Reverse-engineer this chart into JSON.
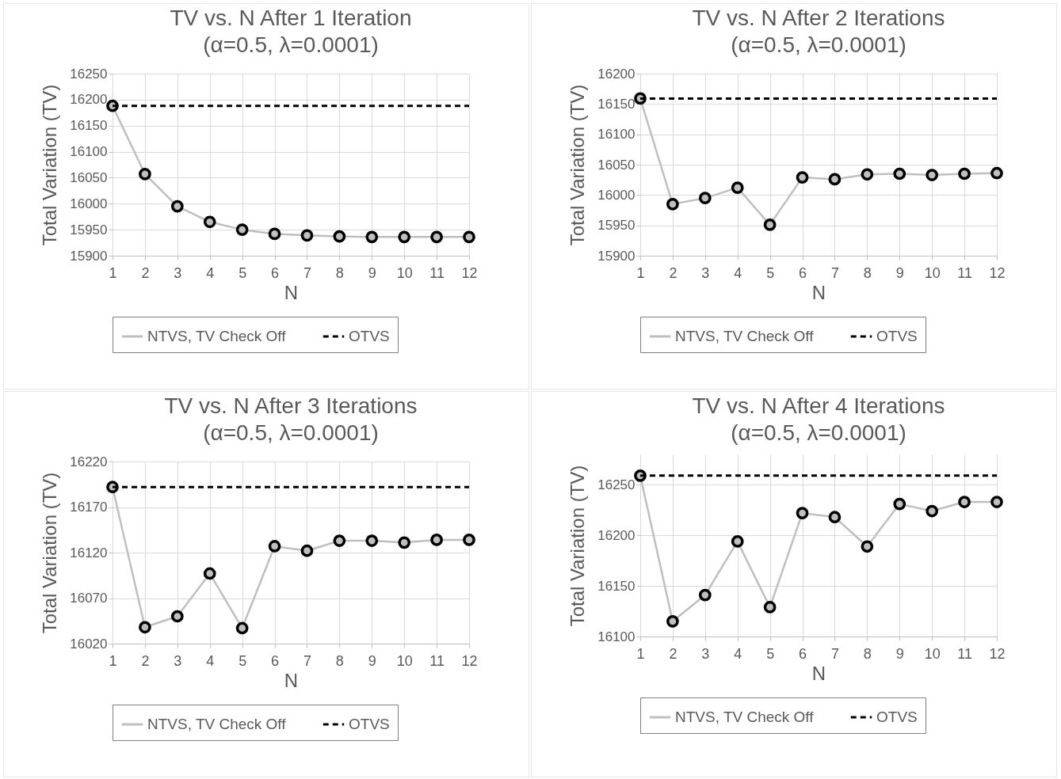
{
  "chart_data": [
    {
      "type": "line",
      "title": "TV vs. N After 1 Iteration",
      "subtitle": "(α=0.5, λ=0.0001)",
      "xlabel": "N",
      "ylabel": "Total Variation (TV)",
      "x": [
        1,
        2,
        3,
        4,
        5,
        6,
        7,
        8,
        9,
        10,
        11,
        12
      ],
      "xlim": [
        1,
        12
      ],
      "xticks": [
        1,
        2,
        3,
        4,
        5,
        6,
        7,
        8,
        9,
        10,
        11,
        12
      ],
      "ylim": [
        15900,
        16250
      ],
      "yticks": [
        15900,
        15950,
        16000,
        16050,
        16100,
        16150,
        16200,
        16250
      ],
      "grid": true,
      "legend": "bottom",
      "series": [
        {
          "name": "NTVS, TV Check Off",
          "color": "#bfbfbf",
          "marker": "circle",
          "line_style": "solid",
          "values": [
            16188,
            16057,
            15995,
            15965,
            15950,
            15942,
            15939,
            15937,
            15936,
            15936,
            15936,
            15936
          ]
        },
        {
          "name": "OTVS",
          "color": "#000000",
          "marker": "none",
          "line_style": "dashed",
          "values": [
            16188,
            16188,
            16188,
            16188,
            16188,
            16188,
            16188,
            16188,
            16188,
            16188,
            16188,
            16188
          ]
        }
      ]
    },
    {
      "type": "line",
      "title": "TV vs. N After 2 Iterations",
      "subtitle": "(α=0.5, λ=0.0001)",
      "xlabel": "N",
      "ylabel": "Total Variation (TV)",
      "x": [
        1,
        2,
        3,
        4,
        5,
        6,
        7,
        8,
        9,
        10,
        11,
        12
      ],
      "xlim": [
        1,
        12
      ],
      "xticks": [
        1,
        2,
        3,
        4,
        5,
        6,
        7,
        8,
        9,
        10,
        11,
        12
      ],
      "ylim": [
        15900,
        16200
      ],
      "yticks": [
        15900,
        15950,
        16000,
        16050,
        16100,
        16150,
        16200
      ],
      "grid": true,
      "legend": "bottom",
      "series": [
        {
          "name": "NTVS, TV Check Off",
          "color": "#bfbfbf",
          "marker": "circle",
          "line_style": "solid",
          "values": [
            16159,
            15985,
            15995,
            16012,
            15951,
            16029,
            16026,
            16034,
            16035,
            16033,
            16035,
            16036
          ]
        },
        {
          "name": "OTVS",
          "color": "#000000",
          "marker": "none",
          "line_style": "dashed",
          "values": [
            16159,
            16159,
            16159,
            16159,
            16159,
            16159,
            16159,
            16159,
            16159,
            16159,
            16159,
            16159
          ]
        }
      ]
    },
    {
      "type": "line",
      "title": "TV vs. N After 3 Iterations",
      "subtitle": "(α=0.5, λ=0.0001)",
      "xlabel": "N",
      "ylabel": "Total Variation (TV)",
      "x": [
        1,
        2,
        3,
        4,
        5,
        6,
        7,
        8,
        9,
        10,
        11,
        12
      ],
      "xlim": [
        1,
        12
      ],
      "xticks": [
        1,
        2,
        3,
        4,
        5,
        6,
        7,
        8,
        9,
        10,
        11,
        12
      ],
      "ylim": [
        16020,
        16220
      ],
      "yticks": [
        16020,
        16070,
        16120,
        16170,
        16220
      ],
      "grid": true,
      "legend": "bottom",
      "series": [
        {
          "name": "NTVS, TV Check Off",
          "color": "#bfbfbf",
          "marker": "circle",
          "line_style": "solid",
          "values": [
            16192,
            16038,
            16050,
            16097,
            16037,
            16127,
            16122,
            16133,
            16133,
            16131,
            16134,
            16134
          ]
        },
        {
          "name": "OTVS",
          "color": "#000000",
          "marker": "none",
          "line_style": "dashed",
          "values": [
            16192,
            16192,
            16192,
            16192,
            16192,
            16192,
            16192,
            16192,
            16192,
            16192,
            16192,
            16192
          ]
        }
      ]
    },
    {
      "type": "line",
      "title": "TV vs. N After 4 Iterations",
      "subtitle": "(α=0.5, λ=0.0001)",
      "xlabel": "N",
      "ylabel": "Total Variation (TV)",
      "x": [
        1,
        2,
        3,
        4,
        5,
        6,
        7,
        8,
        9,
        10,
        11,
        12
      ],
      "xlim": [
        1,
        12
      ],
      "xticks": [
        1,
        2,
        3,
        4,
        5,
        6,
        7,
        8,
        9,
        10,
        11,
        12
      ],
      "ylim": [
        16100,
        16280
      ],
      "yticks": [
        16100,
        16150,
        16200,
        16250
      ],
      "grid": true,
      "legend": "bottom",
      "series": [
        {
          "name": "NTVS, TV Check Off",
          "color": "#bfbfbf",
          "marker": "circle",
          "line_style": "solid",
          "values": [
            16259,
            16115,
            16141,
            16194,
            16129,
            16222,
            16218,
            16189,
            16231,
            16224,
            16233,
            16233
          ]
        },
        {
          "name": "OTVS",
          "color": "#000000",
          "marker": "none",
          "line_style": "dashed",
          "values": [
            16259,
            16259,
            16259,
            16259,
            16259,
            16259,
            16259,
            16259,
            16259,
            16259,
            16259,
            16259
          ]
        }
      ]
    }
  ]
}
